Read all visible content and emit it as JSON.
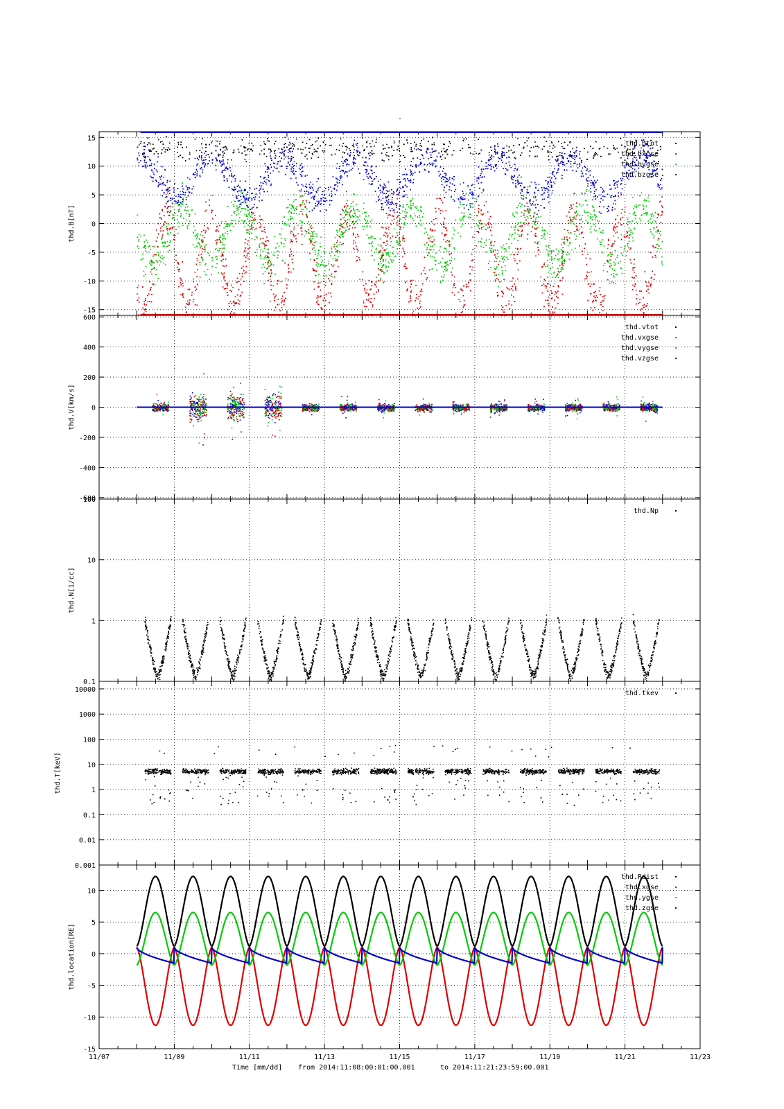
{
  "figure_title": "-",
  "footer": {
    "xlabel": "Time [mm/dd]",
    "from_label": "from 2014:11:08:00:01:00.001",
    "to_label": "to  2014:11:21:23:59:00.001"
  },
  "chart_data": [
    {
      "type": "scatter",
      "name": "panel-b",
      "ylabel": "thd.B[nT]",
      "scale": "linear",
      "ylim": [
        -16,
        16
      ],
      "yticks": [
        15,
        10,
        5,
        0,
        -5,
        -10,
        -15
      ],
      "ytick_labels": [
        "15",
        "10",
        "5",
        "0",
        "-5",
        "-10",
        "-15"
      ],
      "xlim_days": [
        7,
        23
      ],
      "grid": true,
      "legend_position": "top-right",
      "series": [
        {
          "name": "thd.btot",
          "color": "#000000"
        },
        {
          "name": "thd.bxgse",
          "color": "#dd0000"
        },
        {
          "name": "thd.bygse",
          "color": "#00cc00"
        },
        {
          "name": "thd.bzgse",
          "color": "#0000cc"
        }
      ]
    },
    {
      "type": "scatter",
      "name": "panel-v",
      "ylabel": "thd.V[km/s]",
      "scale": "linear",
      "ylim": [
        -610,
        610
      ],
      "yticks": [
        600,
        400,
        200,
        0,
        -200,
        -400,
        -600
      ],
      "ytick_labels": [
        "600",
        "400",
        "200",
        "0",
        "-200",
        "-400",
        "-600"
      ],
      "xlim_days": [
        7,
        23
      ],
      "grid": true,
      "legend_position": "top-right",
      "series": [
        {
          "name": "thd.vtot",
          "color": "#000000"
        },
        {
          "name": "thd.vxgse",
          "color": "#dd0000"
        },
        {
          "name": "thd.vygse",
          "color": "#00cc00"
        },
        {
          "name": "thd.vzgse",
          "color": "#0000cc"
        }
      ]
    },
    {
      "type": "scatter",
      "name": "panel-n",
      "ylabel": "thd.N[1/cc]",
      "scale": "log",
      "ylim": [
        0.1,
        100
      ],
      "yticks": [
        100,
        10,
        1,
        0.1
      ],
      "ytick_labels": [
        "100",
        "10",
        "1",
        "0.1"
      ],
      "xlim_days": [
        7,
        23
      ],
      "grid": true,
      "legend_position": "top-right",
      "series": [
        {
          "name": "thd.Np",
          "color": "#000000"
        }
      ]
    },
    {
      "type": "scatter",
      "name": "panel-t",
      "ylabel": "thd.T[keV]",
      "scale": "log",
      "ylim": [
        0.001,
        20000
      ],
      "yticks": [
        10000,
        1000,
        100,
        10,
        1,
        0.1,
        0.01,
        0.001
      ],
      "ytick_labels": [
        "10000",
        "1000",
        "100",
        "10",
        "1",
        "0.1",
        "0.01",
        "0.001"
      ],
      "xlim_days": [
        7,
        23
      ],
      "grid": true,
      "legend_position": "top-right",
      "series": [
        {
          "name": "thd.tkev",
          "color": "#000000"
        }
      ]
    },
    {
      "type": "line",
      "name": "panel-loc",
      "ylabel": "thd.location[RE]",
      "scale": "linear",
      "ylim": [
        -15,
        14
      ],
      "yticks": [
        10,
        5,
        0,
        -5,
        -10,
        -15
      ],
      "ytick_labels": [
        "10",
        "5",
        "0",
        "-5",
        "-10",
        "-15"
      ],
      "xlim_days": [
        7,
        23
      ],
      "xticks_days": [
        7,
        9,
        11,
        13,
        15,
        17,
        19,
        21,
        23
      ],
      "xtick_labels": [
        "11/07",
        "11/09",
        "11/11",
        "11/13",
        "11/15",
        "11/17",
        "11/19",
        "11/21",
        "11/23"
      ],
      "grid": true,
      "legend_position": "top-right",
      "orbit": {
        "start_day": 8.0,
        "end_day": 22.0,
        "period_days": 1.0
      },
      "series": [
        {
          "name": "thd.Rdist",
          "color": "#000000",
          "max": 12.2,
          "min": 1.2
        },
        {
          "name": "thd.xgse",
          "color": "#dd0000",
          "max": 1.0,
          "min": -11.3
        },
        {
          "name": "thd.ygse",
          "color": "#00cc00",
          "max": 6.5,
          "min": -1.8
        },
        {
          "name": "thd.zgse",
          "color": "#0000cc",
          "max": 1.0,
          "min": -1.5
        }
      ]
    }
  ]
}
